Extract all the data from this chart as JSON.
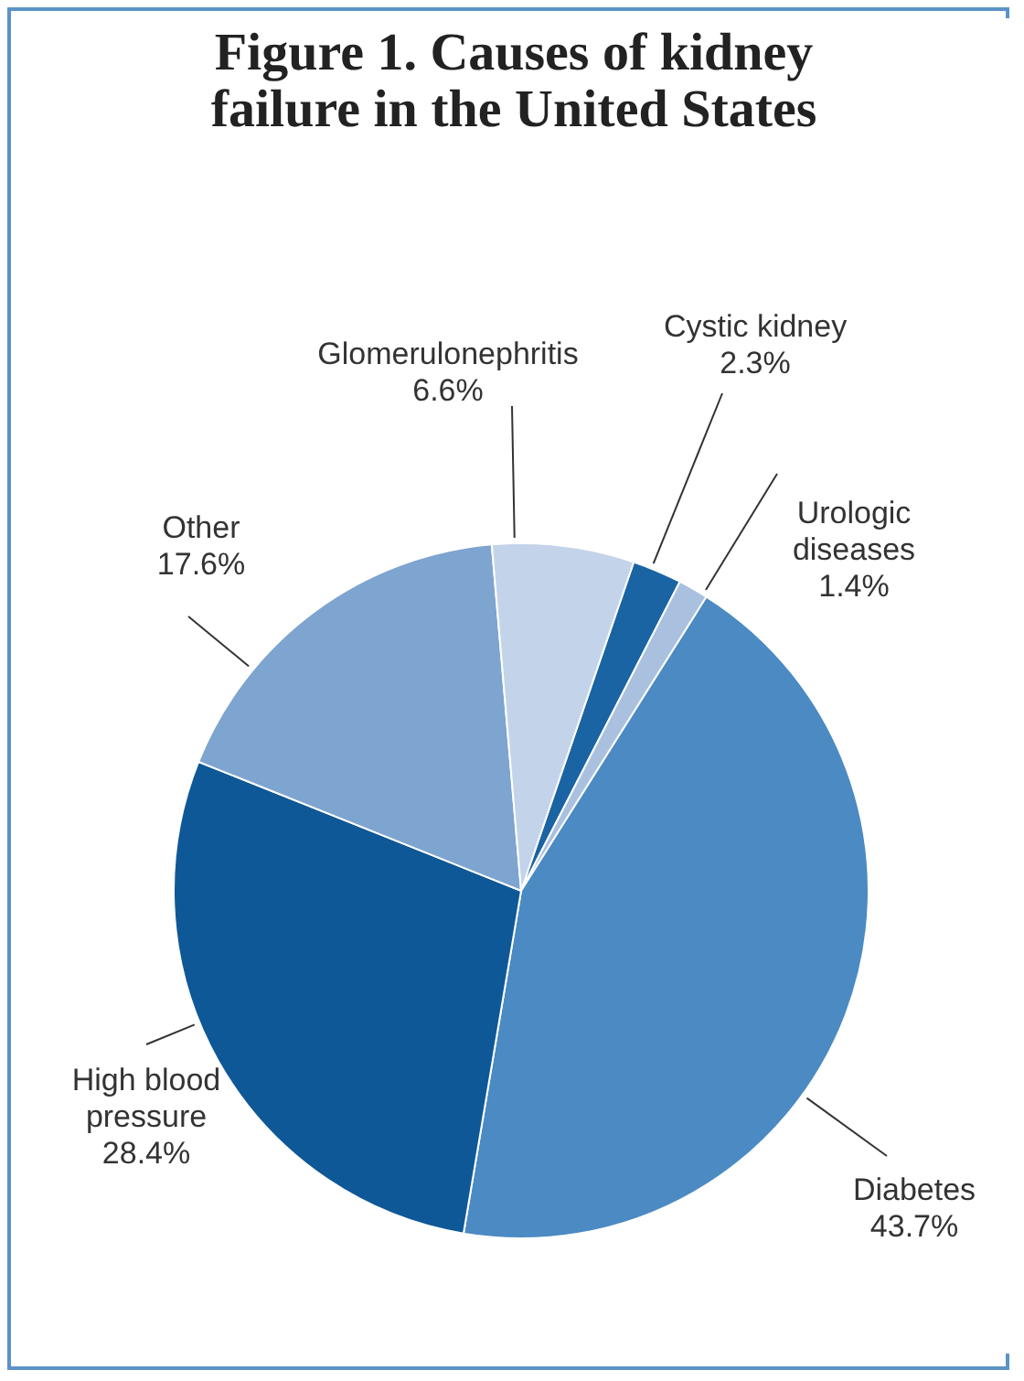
{
  "chart_data": {
    "type": "pie",
    "title": "Figure 1.  Causes of kidney failure in the United States",
    "categories": [
      "Cystic kidney",
      "Urologic diseases",
      "Diabetes",
      "High blood pressure",
      "Other",
      "Glomerulonephritis"
    ],
    "values": [
      2.3,
      1.4,
      43.7,
      28.4,
      17.6,
      6.6
    ],
    "value_labels": [
      "2.3%",
      "1.4%",
      "43.7%",
      "28.4%",
      "17.6%",
      "6.6%"
    ],
    "colors": [
      "#1b64a3",
      "#a9c1df",
      "#4b8ac2",
      "#0f5897",
      "#7ea4d0",
      "#c3d4ea"
    ],
    "legend": false
  }
}
